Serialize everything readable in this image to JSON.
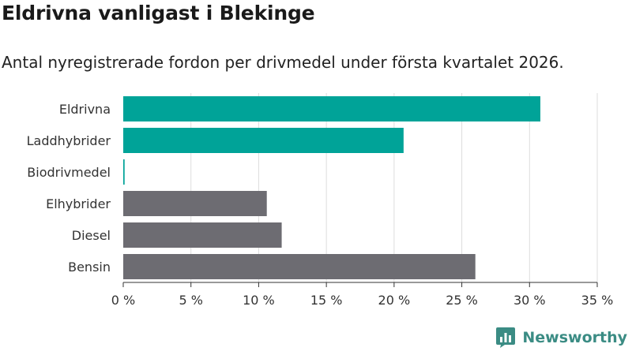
{
  "header": {
    "title": "Eldrivna vanligast i Blekinge",
    "subtitle": "Antal nyregistrerade fordon per drivmedel under första kvartalet 2026."
  },
  "brand": {
    "name": "Newsworthy",
    "icon": "newsworthy-logo-icon",
    "color": "#3b8c84"
  },
  "colors": {
    "highlight": "#00a398",
    "default": "#6d6c72",
    "grid": "#dddddd"
  },
  "chart_data": {
    "type": "bar",
    "orientation": "horizontal",
    "categories": [
      "Eldrivna",
      "Laddhybrider",
      "Biodrivmedel",
      "Elhybrider",
      "Diesel",
      "Bensin"
    ],
    "values": [
      30.8,
      20.7,
      0.1,
      10.6,
      11.7,
      26.0
    ],
    "highlighted": [
      true,
      true,
      true,
      false,
      false,
      false
    ],
    "xlim": [
      0,
      35
    ],
    "ticks": [
      0,
      5,
      10,
      15,
      20,
      25,
      30,
      35
    ],
    "tick_labels": [
      "0 %",
      "5 %",
      "10 %",
      "15 %",
      "20 %",
      "25 %",
      "30 %",
      "35 %"
    ],
    "grid": true
  }
}
